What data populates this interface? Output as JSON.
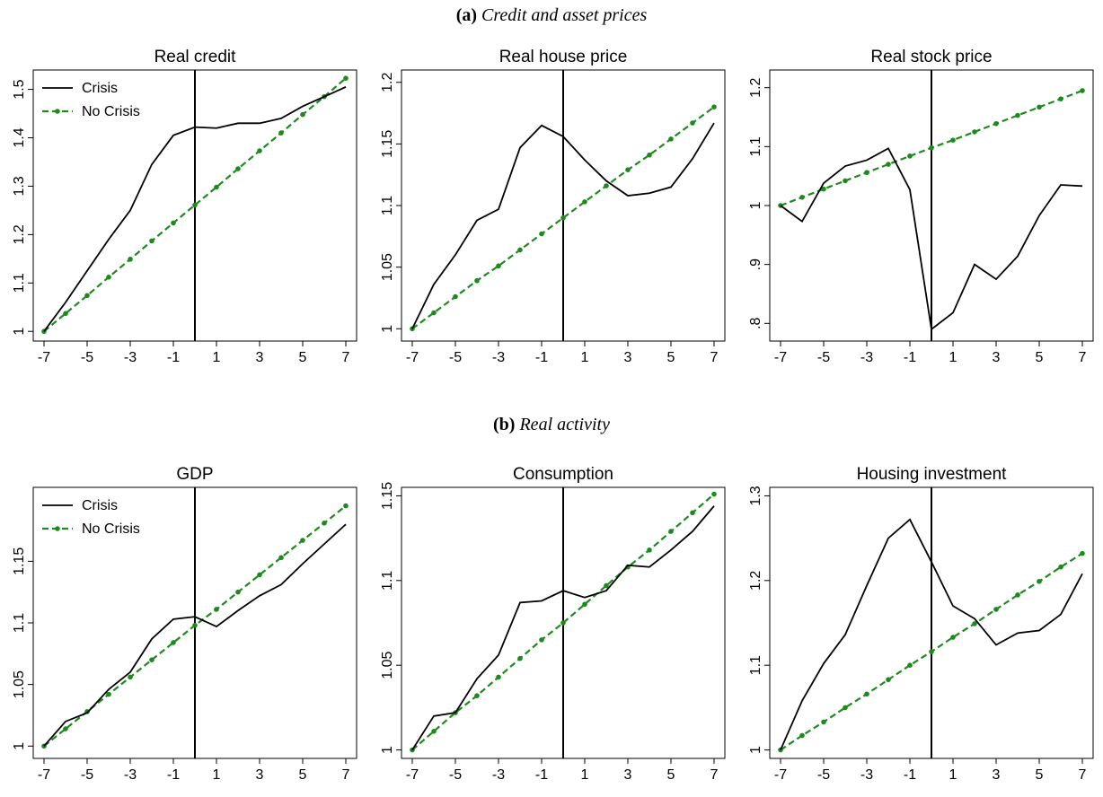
{
  "panels": [
    {
      "label": "(a)",
      "caption": "Credit and asset prices"
    },
    {
      "label": "(b)",
      "caption": "Real activity"
    }
  ],
  "colors": {
    "crisis": "#000000",
    "no_crisis": "#1e8a1e",
    "event_line": "#000000"
  },
  "chart_data": [
    {
      "type": "line",
      "title": "Real credit",
      "panel": "a",
      "x": [
        -7,
        -6,
        -5,
        -4,
        -3,
        -2,
        -1,
        0,
        1,
        2,
        3,
        4,
        5,
        6,
        7
      ],
      "xticks": [
        "-7",
        "-5",
        "-3",
        "-1",
        "1",
        "3",
        "5",
        "7"
      ],
      "ylim": [
        0.98,
        1.54
      ],
      "yticks": [
        {
          "v": 1,
          "label": "1"
        },
        {
          "v": 1.1,
          "label": "1.1"
        },
        {
          "v": 1.2,
          "label": "1.2"
        },
        {
          "v": 1.3,
          "label": "1.3"
        },
        {
          "v": 1.4,
          "label": "1.4"
        },
        {
          "v": 1.5,
          "label": "1.5"
        }
      ],
      "event_x": 0,
      "legend": true,
      "series": [
        {
          "name": "Crisis",
          "values": [
            1.0,
            1.06,
            1.125,
            1.19,
            1.25,
            1.345,
            1.405,
            1.422,
            1.42,
            1.43,
            1.43,
            1.44,
            1.465,
            1.485,
            1.505
          ]
        },
        {
          "name": "No Crisis",
          "values": [
            1.0,
            1.037,
            1.074,
            1.112,
            1.149,
            1.187,
            1.224,
            1.261,
            1.298,
            1.336,
            1.373,
            1.41,
            1.448,
            1.485,
            1.523
          ]
        }
      ]
    },
    {
      "type": "line",
      "title": "Real house price",
      "panel": "a",
      "x": [
        -7,
        -6,
        -5,
        -4,
        -3,
        -2,
        -1,
        0,
        1,
        2,
        3,
        4,
        5,
        6,
        7
      ],
      "xticks": [
        "-7",
        "-5",
        "-3",
        "-1",
        "1",
        "3",
        "5",
        "7"
      ],
      "ylim": [
        0.99,
        1.21
      ],
      "yticks": [
        {
          "v": 1,
          "label": "1"
        },
        {
          "v": 1.05,
          "label": "1.05"
        },
        {
          "v": 1.1,
          "label": "1.1"
        },
        {
          "v": 1.15,
          "label": "1.15"
        },
        {
          "v": 1.2,
          "label": "1.2"
        }
      ],
      "event_x": 0,
      "legend": false,
      "series": [
        {
          "name": "Crisis",
          "values": [
            1.0,
            1.036,
            1.06,
            1.088,
            1.097,
            1.147,
            1.165,
            1.156,
            1.137,
            1.12,
            1.108,
            1.11,
            1.115,
            1.138,
            1.167
          ]
        },
        {
          "name": "No Crisis",
          "values": [
            1.0,
            1.013,
            1.026,
            1.039,
            1.051,
            1.064,
            1.077,
            1.09,
            1.103,
            1.116,
            1.129,
            1.141,
            1.154,
            1.167,
            1.18
          ]
        }
      ]
    },
    {
      "type": "line",
      "title": "Real stock price",
      "panel": "a",
      "x": [
        -7,
        -6,
        -5,
        -4,
        -3,
        -2,
        -1,
        0,
        1,
        2,
        3,
        4,
        5,
        6,
        7
      ],
      "xticks": [
        "-7",
        "-5",
        "-3",
        "-1",
        "1",
        "3",
        "5",
        "7"
      ],
      "ylim": [
        0.77,
        1.23
      ],
      "yticks": [
        {
          "v": 0.8,
          "label": ".8"
        },
        {
          "v": 0.9,
          "label": ".9"
        },
        {
          "v": 1,
          "label": "1"
        },
        {
          "v": 1.1,
          "label": "1.1"
        },
        {
          "v": 1.2,
          "label": "1.2"
        }
      ],
      "event_x": 0,
      "legend": false,
      "series": [
        {
          "name": "Crisis",
          "values": [
            1.0,
            0.973,
            1.038,
            1.067,
            1.077,
            1.097,
            1.027,
            0.79,
            0.818,
            0.9,
            0.875,
            0.914,
            0.983,
            1.035,
            1.033
          ]
        },
        {
          "name": "No Crisis",
          "values": [
            1.0,
            1.014,
            1.028,
            1.042,
            1.056,
            1.07,
            1.084,
            1.098,
            1.111,
            1.125,
            1.139,
            1.153,
            1.167,
            1.181,
            1.195
          ]
        }
      ]
    },
    {
      "type": "line",
      "title": "GDP",
      "panel": "b",
      "x": [
        -7,
        -6,
        -5,
        -4,
        -3,
        -2,
        -1,
        0,
        1,
        2,
        3,
        4,
        5,
        6,
        7
      ],
      "xticks": [
        "-7",
        "-5",
        "-3",
        "-1",
        "1",
        "3",
        "5",
        "7"
      ],
      "ylim": [
        0.99,
        1.21
      ],
      "yticks": [
        {
          "v": 1,
          "label": "1"
        },
        {
          "v": 1.05,
          "label": "1.05"
        },
        {
          "v": 1.1,
          "label": "1.1"
        },
        {
          "v": 1.15,
          "label": "1.15"
        }
      ],
      "event_x": 0,
      "legend": true,
      "series": [
        {
          "name": "Crisis",
          "values": [
            1.0,
            1.02,
            1.027,
            1.046,
            1.06,
            1.087,
            1.103,
            1.105,
            1.097,
            1.11,
            1.122,
            1.131,
            1.148,
            1.164,
            1.18
          ]
        },
        {
          "name": "No Crisis",
          "values": [
            1.0,
            1.014,
            1.028,
            1.042,
            1.056,
            1.07,
            1.084,
            1.098,
            1.111,
            1.125,
            1.139,
            1.153,
            1.167,
            1.181,
            1.195
          ]
        }
      ]
    },
    {
      "type": "line",
      "title": "Consumption",
      "panel": "b",
      "x": [
        -7,
        -6,
        -5,
        -4,
        -3,
        -2,
        -1,
        0,
        1,
        2,
        3,
        4,
        5,
        6,
        7
      ],
      "xticks": [
        "-7",
        "-5",
        "-3",
        "-1",
        "1",
        "3",
        "5",
        "7"
      ],
      "ylim": [
        0.995,
        1.155
      ],
      "yticks": [
        {
          "v": 1,
          "label": "1"
        },
        {
          "v": 1.05,
          "label": "1.05"
        },
        {
          "v": 1.1,
          "label": "1.1"
        },
        {
          "v": 1.15,
          "label": "1.15"
        }
      ],
      "event_x": 0,
      "legend": false,
      "series": [
        {
          "name": "Crisis",
          "values": [
            1.0,
            1.02,
            1.022,
            1.042,
            1.056,
            1.087,
            1.088,
            1.094,
            1.09,
            1.094,
            1.109,
            1.108,
            1.118,
            1.129,
            1.144
          ]
        },
        {
          "name": "No Crisis",
          "values": [
            1.0,
            1.011,
            1.022,
            1.032,
            1.043,
            1.054,
            1.065,
            1.075,
            1.086,
            1.097,
            1.108,
            1.118,
            1.129,
            1.14,
            1.151
          ]
        }
      ]
    },
    {
      "type": "line",
      "title": "Housing investment",
      "panel": "b",
      "x": [
        -7,
        -6,
        -5,
        -4,
        -3,
        -2,
        -1,
        0,
        1,
        2,
        3,
        4,
        5,
        6,
        7
      ],
      "xticks": [
        "-7",
        "-5",
        "-3",
        "-1",
        "1",
        "3",
        "5",
        "7"
      ],
      "ylim": [
        0.99,
        1.31
      ],
      "yticks": [
        {
          "v": 1,
          "label": "1"
        },
        {
          "v": 1.1,
          "label": "1.1"
        },
        {
          "v": 1.2,
          "label": "1.2"
        },
        {
          "v": 1.3,
          "label": "1.3"
        }
      ],
      "event_x": 0,
      "legend": false,
      "series": [
        {
          "name": "Crisis",
          "values": [
            1.0,
            1.058,
            1.102,
            1.136,
            1.194,
            1.25,
            1.272,
            1.222,
            1.17,
            1.155,
            1.124,
            1.138,
            1.141,
            1.16,
            1.208
          ]
        },
        {
          "name": "No Crisis",
          "values": [
            1.0,
            1.017,
            1.033,
            1.05,
            1.066,
            1.083,
            1.1,
            1.116,
            1.133,
            1.149,
            1.166,
            1.183,
            1.199,
            1.216,
            1.232
          ]
        }
      ]
    }
  ]
}
